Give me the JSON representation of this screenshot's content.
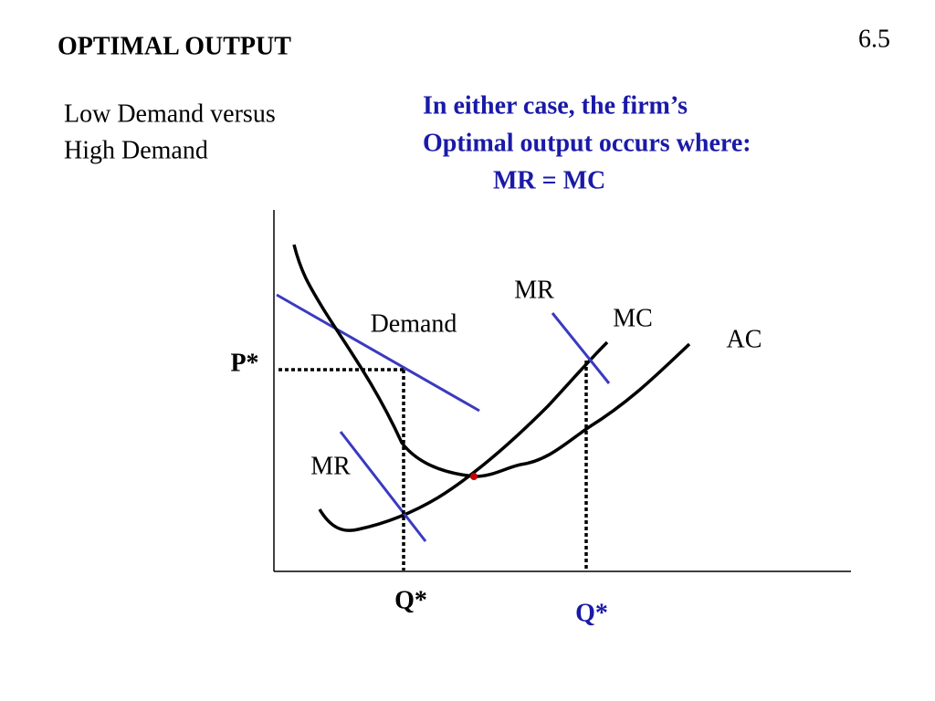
{
  "header": {
    "title": "OPTIMAL OUTPUT",
    "slide_number": "6.5"
  },
  "subtitle": [
    "Low Demand versus",
    "High Demand"
  ],
  "note": [
    "In either case, the firm’s",
    "Optimal output occurs where:",
    "MR = MC"
  ],
  "diagram": {
    "labels": {
      "mr_high": "MR",
      "mc": "MC",
      "ac": "AC",
      "demand": "Demand",
      "p_star": "P*",
      "mr_low": "MR",
      "q_star_low": "Q*",
      "q_star_high": "Q*"
    }
  }
}
